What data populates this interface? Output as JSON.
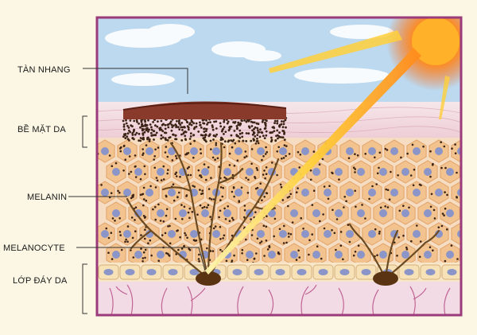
{
  "labels": {
    "freckle": "TÀN NHANG",
    "skin_surface": "BỀ MẶT DA",
    "melanin": "MELANIN",
    "melanocyte": "MELANOCYTE",
    "basal_layer": "LỚP ĐÁY DA"
  },
  "colors": {
    "background": "#fbf7e4",
    "frame": "#9b3b7a",
    "sky": "#bcd9ef",
    "cell_fill": "#f2c38e",
    "nucleus": "#8b95c8",
    "melanin_dot": "#3b2416",
    "sun": "#ff7a10",
    "dermis": "#f3dbe6"
  },
  "icons": [
    "sun-icon",
    "melanocyte-icon"
  ]
}
